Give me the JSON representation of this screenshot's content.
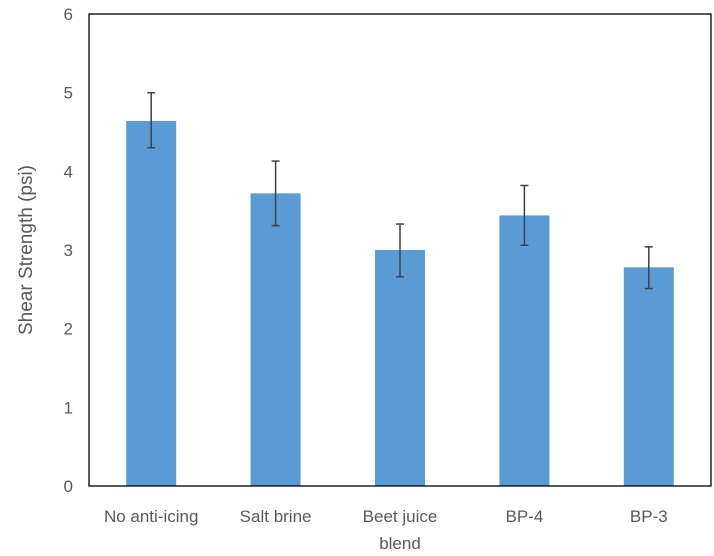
{
  "chart_data": {
    "type": "bar",
    "title": "",
    "xlabel": "",
    "ylabel": "Shear Strength (psi)",
    "ylim": [
      0,
      6
    ],
    "yticks": [
      "0",
      "1",
      "2",
      "3",
      "4",
      "5",
      "6"
    ],
    "grid": false,
    "legend": "none",
    "categories": [
      [
        "No anti-icing"
      ],
      [
        "Salt brine"
      ],
      [
        "Beet juice",
        "blend"
      ],
      [
        "BP-4"
      ],
      [
        "BP-3"
      ]
    ],
    "values": [
      4.64,
      3.72,
      3.0,
      3.44,
      2.78
    ],
    "error_low": [
      4.3,
      3.31,
      2.66,
      3.06,
      2.51
    ],
    "error_high": [
      5.0,
      4.13,
      3.33,
      3.82,
      3.04
    ],
    "colors": {
      "bar": "#5b9bd5",
      "error_bar": "#404040",
      "axis": "#000000"
    }
  }
}
